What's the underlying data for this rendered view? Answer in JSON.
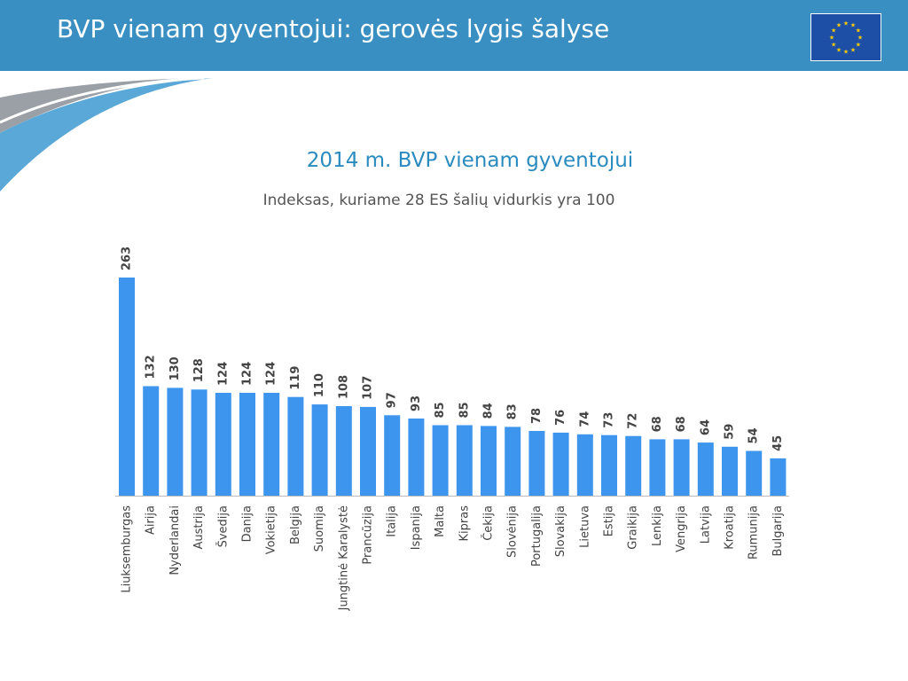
{
  "header": {
    "title": "BVP vienam gyventojui: gerovės lygis šalyse"
  },
  "icons": {
    "flag": "eu-flag-icon"
  },
  "colors": {
    "header_bg": "#3a8fc2",
    "bar": "#3d95ee",
    "title": "#2a8bc0",
    "swoosh_gray": "#9aa0a6",
    "swoosh_blue": "#5aa8d8",
    "flag_blue": "#1d4fa6",
    "flag_star": "#ffcc00"
  },
  "chart_data": {
    "type": "bar",
    "title": "2014 m. BVP vienam gyventojui",
    "subtitle": "Indeksas, kuriame 28 ES šalių vidurkis yra 100",
    "xlabel": "",
    "ylabel": "",
    "ylim": [
      0,
      263
    ],
    "grid": false,
    "legend": "none",
    "data_labels": true,
    "categories": [
      "Liuksemburgas",
      "Airija",
      "Nyderlandai",
      "Austrija",
      "Švedija",
      "Danija",
      "Vokietija",
      "Belgija",
      "Suomija",
      "Jungtinė Karalystė",
      "Prancūzija",
      "Italija",
      "Ispanija",
      "Malta",
      "Kipras",
      "Čekija",
      "Slovėnija",
      "Portugalija",
      "Slovakija",
      "Lietuva",
      "Estija",
      "Graikija",
      "Lenkija",
      "Vengrija",
      "Latvija",
      "Kroatija",
      "Rumunija",
      "Bulgarija"
    ],
    "values": [
      263,
      132,
      130,
      128,
      124,
      124,
      124,
      119,
      110,
      108,
      107,
      97,
      93,
      85,
      85,
      84,
      83,
      78,
      76,
      74,
      73,
      72,
      68,
      68,
      64,
      59,
      54,
      45
    ]
  }
}
